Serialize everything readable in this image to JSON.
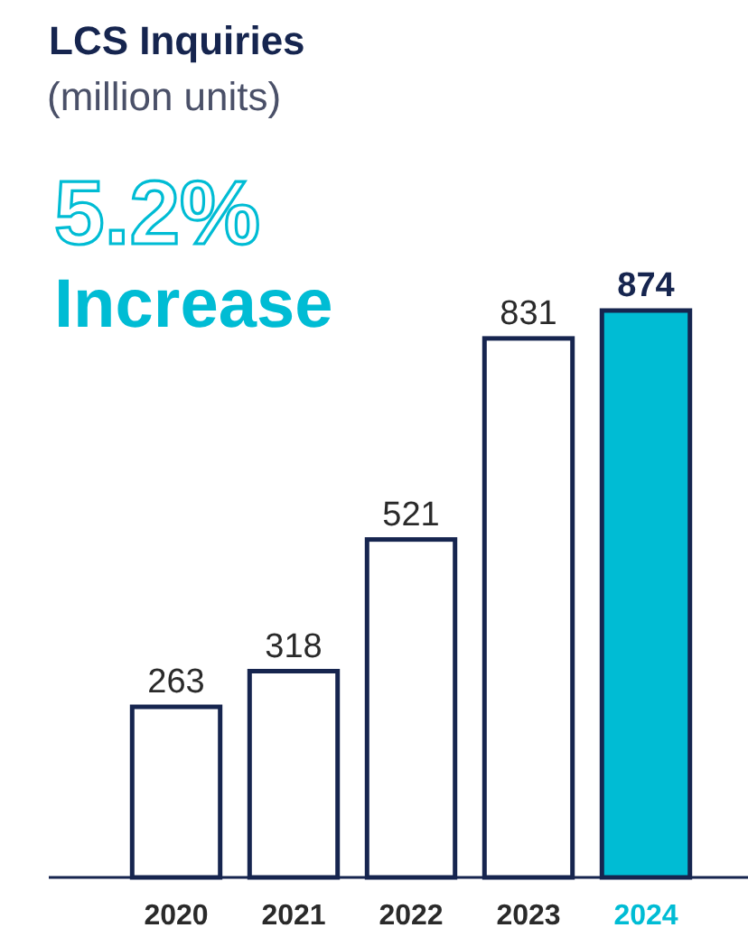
{
  "chart_data": {
    "type": "bar",
    "title": "LCS Inquiries",
    "subtitle": "(million units)",
    "annotations": [
      "5.2%",
      "Increase"
    ],
    "categories": [
      "2020",
      "2021",
      "2022",
      "2023",
      "2024"
    ],
    "values": [
      263,
      318,
      521,
      831,
      874
    ],
    "colors": [
      "#ffffff",
      "#ffffff",
      "#ffffff",
      "#ffffff",
      "#00bcd4"
    ],
    "data_labels": true
  }
}
